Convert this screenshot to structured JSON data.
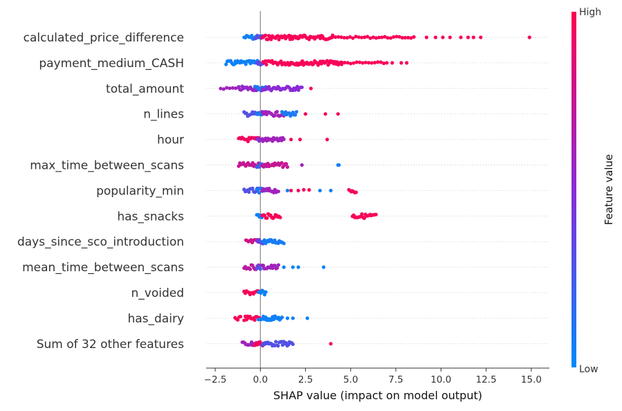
{
  "chart_data": {
    "type": "scatter",
    "subtype": "beeswarm",
    "xlabel": "SHAP value (impact on model output)",
    "xlim": [
      -3.0,
      16.0
    ],
    "xticks": [
      -2.5,
      0.0,
      2.5,
      5.0,
      7.5,
      10.0,
      12.5,
      15.0
    ],
    "xtick_labels": [
      "−2.5",
      "0.0",
      "2.5",
      "5.0",
      "7.5",
      "10.0",
      "12.5",
      "15.0"
    ],
    "grid": false,
    "colorbar": {
      "label": "Feature value",
      "high_label": "High",
      "low_label": "Low",
      "low_color": "#008bfb",
      "mid_color": "#8a2bd6",
      "high_color": "#ff0051"
    },
    "features": [
      {
        "name": "calculated_price_difference",
        "points": [
          {
            "min": -0.9,
            "max": -0.2,
            "value": 0.05,
            "dense": true
          },
          {
            "min": -0.3,
            "max": 0.1,
            "value": 0.3,
            "dense": true
          },
          {
            "min": 0.1,
            "max": 4.0,
            "value": 0.97,
            "dense": true
          },
          {
            "min": 4.0,
            "max": 8.5,
            "value": 0.97,
            "dense": false
          },
          {
            "x": 9.2,
            "value": 0.97
          },
          {
            "x": 9.7,
            "value": 0.97
          },
          {
            "x": 10.1,
            "value": 0.97
          },
          {
            "x": 10.5,
            "value": 0.97
          },
          {
            "x": 11.1,
            "value": 0.97
          },
          {
            "x": 11.5,
            "value": 0.97
          },
          {
            "x": 11.8,
            "value": 0.97
          },
          {
            "x": 12.2,
            "value": 0.97
          },
          {
            "x": 14.9,
            "value": 0.97
          }
        ]
      },
      {
        "name": "payment_medium_CASH",
        "points": [
          {
            "min": -1.9,
            "max": -0.1,
            "value": 0.05,
            "dense": true
          },
          {
            "min": -0.2,
            "max": 0.15,
            "value": 0.35,
            "dense": true
          },
          {
            "min": 0.15,
            "max": 4.5,
            "value": 0.97,
            "dense": true
          },
          {
            "min": 4.5,
            "max": 7.0,
            "value": 0.97,
            "dense": false
          },
          {
            "x": 7.3,
            "value": 0.97
          },
          {
            "x": 7.8,
            "value": 0.97
          },
          {
            "x": 8.1,
            "value": 0.97
          }
        ]
      },
      {
        "name": "total_amount",
        "points": [
          {
            "min": -2.2,
            "max": -1.2,
            "value": 0.6,
            "dense": false
          },
          {
            "min": -1.2,
            "max": -0.1,
            "value": 0.55,
            "dense": true
          },
          {
            "min": -0.3,
            "max": 0.3,
            "value": 0.1,
            "dense": true
          },
          {
            "min": 0.1,
            "max": 2.3,
            "value": 0.5,
            "dense": true
          },
          {
            "x": 2.8,
            "value": 0.95
          }
        ]
      },
      {
        "name": "n_lines",
        "points": [
          {
            "min": -0.9,
            "max": -0.1,
            "value": 0.3,
            "dense": true
          },
          {
            "min": -0.2,
            "max": 0.2,
            "value": 0.1,
            "dense": true
          },
          {
            "min": 0.1,
            "max": 1.3,
            "value": 0.6,
            "dense": true
          },
          {
            "min": 1.2,
            "max": 2.0,
            "value": 0.1,
            "dense": true
          },
          {
            "x": 2.5,
            "value": 0.95
          },
          {
            "x": 3.6,
            "value": 0.95
          },
          {
            "x": 4.3,
            "value": 0.95
          }
        ]
      },
      {
        "name": "hour",
        "points": [
          {
            "min": -1.2,
            "max": -0.1,
            "value": 0.95,
            "dense": true
          },
          {
            "min": -0.2,
            "max": 0.2,
            "value": 0.5,
            "dense": true
          },
          {
            "min": 0.1,
            "max": 1.3,
            "value": 0.6,
            "dense": true
          },
          {
            "x": 1.7,
            "value": 0.95
          },
          {
            "x": 2.2,
            "value": 0.95
          },
          {
            "x": 3.7,
            "value": 0.95
          }
        ]
      },
      {
        "name": "max_time_between_scans",
        "points": [
          {
            "min": -1.2,
            "max": -0.1,
            "value": 0.75,
            "dense": true
          },
          {
            "min": -0.2,
            "max": 0.2,
            "value": 0.2,
            "dense": true
          },
          {
            "min": 0.1,
            "max": 1.5,
            "value": 0.75,
            "dense": true
          },
          {
            "x": 2.3,
            "value": 0.6
          },
          {
            "x": 4.3,
            "value": 0.05
          },
          {
            "x": 4.35,
            "value": 0.05
          }
        ]
      },
      {
        "name": "popularity_min",
        "points": [
          {
            "min": -0.9,
            "max": -0.1,
            "value": 0.3,
            "dense": true
          },
          {
            "min": -0.2,
            "max": 0.2,
            "value": 0.1,
            "dense": true
          },
          {
            "min": 0.1,
            "max": 1.0,
            "value": 0.6,
            "dense": true
          },
          {
            "x": 1.5,
            "value": 0.05
          },
          {
            "x": 1.7,
            "value": 0.95
          },
          {
            "x": 2.1,
            "value": 0.95
          },
          {
            "min": 2.4,
            "max": 2.7,
            "value": 0.95,
            "dense": false
          },
          {
            "x": 3.3,
            "value": 0.05
          },
          {
            "x": 3.9,
            "value": 0.05
          },
          {
            "min": 4.9,
            "max": 5.3,
            "value": 0.95,
            "dense": true
          }
        ]
      },
      {
        "name": "has_snacks",
        "points": [
          {
            "min": -0.2,
            "max": 0.15,
            "value": 0.05,
            "dense": true
          },
          {
            "min": 0.1,
            "max": 1.1,
            "value": 0.97,
            "dense": true
          },
          {
            "min": 5.1,
            "max": 6.4,
            "value": 0.97,
            "dense": true
          }
        ]
      },
      {
        "name": "days_since_sco_introduction",
        "points": [
          {
            "min": -0.8,
            "max": -0.1,
            "value": 0.8,
            "dense": true
          },
          {
            "min": -0.2,
            "max": 0.2,
            "value": 0.4,
            "dense": true
          },
          {
            "min": 0.1,
            "max": 1.3,
            "value": 0.08,
            "dense": true
          }
        ]
      },
      {
        "name": "mean_time_between_scans",
        "points": [
          {
            "min": -0.9,
            "max": -0.1,
            "value": 0.7,
            "dense": true
          },
          {
            "min": -0.2,
            "max": 0.2,
            "value": 0.3,
            "dense": true
          },
          {
            "min": 0.1,
            "max": 1.0,
            "value": 0.6,
            "dense": true
          },
          {
            "x": 1.3,
            "value": 0.05
          },
          {
            "x": 1.8,
            "value": 0.05
          },
          {
            "x": 2.1,
            "value": 0.05
          },
          {
            "x": 3.5,
            "value": 0.05
          }
        ]
      },
      {
        "name": "n_voided",
        "points": [
          {
            "min": -0.9,
            "max": -0.05,
            "value": 0.97,
            "dense": true
          },
          {
            "min": -0.1,
            "max": 0.3,
            "value": 0.05,
            "dense": true
          }
        ]
      },
      {
        "name": "has_dairy",
        "points": [
          {
            "min": -1.4,
            "max": -1.1,
            "value": 0.97,
            "dense": true
          },
          {
            "min": -0.9,
            "max": -0.05,
            "value": 0.97,
            "dense": true
          },
          {
            "min": -0.1,
            "max": 1.2,
            "value": 0.05,
            "dense": true
          },
          {
            "x": 1.5,
            "value": 0.05
          },
          {
            "x": 1.8,
            "value": 0.05
          },
          {
            "x": 2.6,
            "value": 0.05
          }
        ]
      },
      {
        "name": "Sum of 32 other features",
        "points": [
          {
            "min": -1.0,
            "max": -0.1,
            "value": 0.6,
            "dense": true
          },
          {
            "min": -0.3,
            "max": 0.2,
            "value": 0.97,
            "dense": true
          },
          {
            "min": 0.1,
            "max": 1.8,
            "value": 0.3,
            "dense": true
          },
          {
            "x": 3.9,
            "value": 0.97
          }
        ]
      }
    ]
  }
}
